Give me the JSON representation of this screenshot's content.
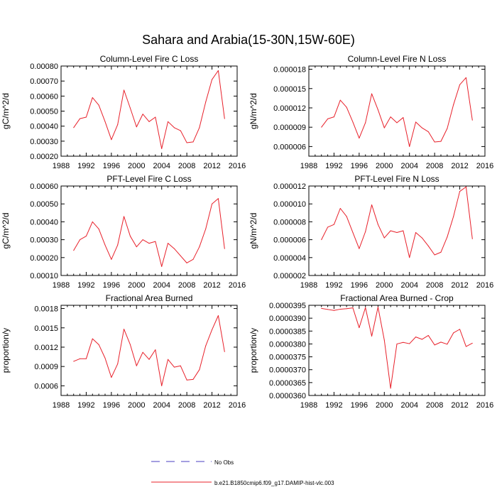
{
  "figure": {
    "title": "Sahara and Arabia(15-30N,15W-60E)"
  },
  "legend": {
    "entries": [
      {
        "label": "No Obs",
        "color": "#4a3fc2",
        "style": "dashed"
      },
      {
        "label": "b.e21.B1850cmip6.f09_g17.DAMIP-hist-vlc.003",
        "color": "#e8202a",
        "style": "solid"
      }
    ]
  },
  "chart_data": [
    {
      "type": "line",
      "title": "Column-Level Fire C Loss",
      "xlabel": "",
      "ylabel": "gC/m^2/d",
      "xlim": [
        1988,
        2016
      ],
      "ylim": [
        0.0002,
        0.0008
      ],
      "xticks": [
        1988,
        1992,
        1996,
        2000,
        2004,
        2008,
        2012,
        2016
      ],
      "xtick_labels": [
        "1988",
        "1992",
        "1996",
        "2000",
        "2004",
        "2008",
        "2012",
        "2016"
      ],
      "yticks": [
        0.0002,
        0.0003,
        0.0004,
        0.0005,
        0.0006,
        0.0007,
        0.0008
      ],
      "ytick_labels": [
        "0.00020",
        "0.00030",
        "0.00040",
        "0.00050",
        "0.00060",
        "0.00070",
        "0.00080"
      ],
      "x": [
        1990,
        1991,
        1992,
        1993,
        1994,
        1995,
        1996,
        1997,
        1998,
        1999,
        2000,
        2001,
        2002,
        2003,
        2004,
        2005,
        2006,
        2007,
        2008,
        2009,
        2010,
        2011,
        2012,
        2013,
        2014
      ],
      "series": [
        {
          "name": "b.e21.B1850cmip6.f09_g17.DAMIP-hist-vlc.003",
          "color": "#e8202a",
          "values": [
            0.00039,
            0.00045,
            0.00046,
            0.00059,
            0.00054,
            0.00043,
            0.00031,
            0.00041,
            0.00064,
            0.00052,
            0.000395,
            0.00048,
            0.00043,
            0.00046,
            0.00025,
            0.00043,
            0.00039,
            0.00037,
            0.00029,
            0.000295,
            0.00039,
            0.00056,
            0.00071,
            0.00077,
            0.00045
          ]
        }
      ]
    },
    {
      "type": "line",
      "title": "Column-Level Fire N Loss",
      "xlabel": "",
      "ylabel": "gN/m^2/d",
      "xlim": [
        1988,
        2016
      ],
      "ylim": [
        4.5e-06,
        1.85e-05
      ],
      "xticks": [
        1988,
        1992,
        1996,
        2000,
        2004,
        2008,
        2012,
        2016
      ],
      "xtick_labels": [
        "1988",
        "1992",
        "1996",
        "2000",
        "2004",
        "2008",
        "2012",
        "2016"
      ],
      "yticks": [
        6e-06,
        9e-06,
        1.2e-05,
        1.5e-05,
        1.8e-05
      ],
      "ytick_labels": [
        "0.000006",
        "0.000009",
        "0.000012",
        "0.000015",
        "0.000018"
      ],
      "x": [
        1990,
        1991,
        1992,
        1993,
        1994,
        1995,
        1996,
        1997,
        1998,
        1999,
        2000,
        2001,
        2002,
        2003,
        2004,
        2005,
        2006,
        2007,
        2008,
        2009,
        2010,
        2011,
        2012,
        2013,
        2014
      ],
      "series": [
        {
          "name": "b.e21.B1850cmip6.f09_g17.DAMIP-hist-vlc.003",
          "color": "#e8202a",
          "values": [
            9e-06,
            1.03e-05,
            1.06e-05,
            1.32e-05,
            1.21e-05,
            9.8e-06,
            7.3e-06,
            9.7e-06,
            1.42e-05,
            1.17e-05,
            8.9e-06,
            1.06e-05,
            9.7e-06,
            1.05e-05,
            6e-06,
            9.8e-06,
            8.9e-06,
            8.3e-06,
            6.7e-06,
            6.8e-06,
            8.8e-06,
            1.25e-05,
            1.56e-05,
            1.67e-05,
            1.01e-05
          ]
        }
      ]
    },
    {
      "type": "line",
      "title": "PFT-Level Fire C Loss",
      "xlabel": "",
      "ylabel": "gC/m^2/d",
      "xlim": [
        1988,
        2016
      ],
      "ylim": [
        0.0001,
        0.0006
      ],
      "xticks": [
        1988,
        1992,
        1996,
        2000,
        2004,
        2008,
        2012,
        2016
      ],
      "xtick_labels": [
        "1988",
        "1992",
        "1996",
        "2000",
        "2004",
        "2008",
        "2012",
        "2016"
      ],
      "yticks": [
        0.0001,
        0.0002,
        0.0003,
        0.0004,
        0.0005,
        0.0006
      ],
      "ytick_labels": [
        "0.00010",
        "0.00020",
        "0.00030",
        "0.00040",
        "0.00050",
        "0.00060"
      ],
      "x": [
        1990,
        1991,
        1992,
        1993,
        1994,
        1995,
        1996,
        1997,
        1998,
        1999,
        2000,
        2001,
        2002,
        2003,
        2004,
        2005,
        2006,
        2007,
        2008,
        2009,
        2010,
        2011,
        2012,
        2013,
        2014
      ],
      "series": [
        {
          "name": "b.e21.B1850cmip6.f09_g17.DAMIP-hist-vlc.003",
          "color": "#e8202a",
          "values": [
            0.00024,
            0.0003,
            0.00032,
            0.0004,
            0.00036,
            0.00027,
            0.00019,
            0.00027,
            0.00043,
            0.00032,
            0.00026,
            0.0003,
            0.00028,
            0.00029,
            0.00015,
            0.00028,
            0.00025,
            0.00021,
            0.00017,
            0.00019,
            0.00026,
            0.00036,
            0.0005,
            0.00053,
            0.00025
          ]
        }
      ]
    },
    {
      "type": "line",
      "title": "PFT-Level Fire N Loss",
      "xlabel": "",
      "ylabel": "gN/m^2/d",
      "xlim": [
        1988,
        2016
      ],
      "ylim": [
        2e-06,
        1.2e-05
      ],
      "xticks": [
        1988,
        1992,
        1996,
        2000,
        2004,
        2008,
        2012,
        2016
      ],
      "xtick_labels": [
        "1988",
        "1992",
        "1996",
        "2000",
        "2004",
        "2008",
        "2012",
        "2016"
      ],
      "yticks": [
        2e-06,
        4e-06,
        6e-06,
        8e-06,
        1e-05,
        1.2e-05
      ],
      "ytick_labels": [
        "0.000002",
        "0.000004",
        "0.000006",
        "0.000008",
        "0.000010",
        "0.000012"
      ],
      "x": [
        1990,
        1991,
        1992,
        1993,
        1994,
        1995,
        1996,
        1997,
        1998,
        1999,
        2000,
        2001,
        2002,
        2003,
        2004,
        2005,
        2006,
        2007,
        2008,
        2009,
        2010,
        2011,
        2012,
        2013,
        2014
      ],
      "series": [
        {
          "name": "b.e21.B1850cmip6.f09_g17.DAMIP-hist-vlc.003",
          "color": "#e8202a",
          "values": [
            6e-06,
            7.4e-06,
            7.7e-06,
            9.5e-06,
            8.6e-06,
            6.8e-06,
            5e-06,
            6.9e-06,
            9.9e-06,
            7.7e-06,
            6.2e-06,
            7e-06,
            6.8e-06,
            7e-06,
            4e-06,
            6.8e-06,
            6.2e-06,
            5.3e-06,
            4.3e-06,
            4.6e-06,
            6.3e-06,
            8.6e-06,
            1.14e-05,
            1.19e-05,
            6.1e-06
          ]
        }
      ]
    },
    {
      "type": "line",
      "title": "Fractional Area Burned",
      "xlabel": "",
      "ylabel": "proportion/y",
      "xlim": [
        1988,
        2016
      ],
      "ylim": [
        0.00045,
        0.00185
      ],
      "xticks": [
        1988,
        1992,
        1996,
        2000,
        2004,
        2008,
        2012,
        2016
      ],
      "xtick_labels": [
        "1988",
        "1992",
        "1996",
        "2000",
        "2004",
        "2008",
        "2012",
        "2016"
      ],
      "yticks": [
        0.0006,
        0.0009,
        0.0012,
        0.0015,
        0.0018
      ],
      "ytick_labels": [
        "0.0006",
        "0.0009",
        "0.0012",
        "0.0015",
        "0.0018"
      ],
      "x": [
        1990,
        1991,
        1992,
        1993,
        1994,
        1995,
        1996,
        1997,
        1998,
        1999,
        2000,
        2001,
        2002,
        2003,
        2004,
        2005,
        2006,
        2007,
        2008,
        2009,
        2010,
        2011,
        2012,
        2013,
        2014
      ],
      "series": [
        {
          "name": "b.e21.B1850cmip6.f09_g17.DAMIP-hist-vlc.003",
          "color": "#e8202a",
          "values": [
            0.00098,
            0.00102,
            0.00102,
            0.00133,
            0.00124,
            0.00103,
            0.00073,
            0.00094,
            0.00148,
            0.00124,
            0.00091,
            0.00112,
            0.00101,
            0.00116,
            0.0006,
            0.00101,
            0.00089,
            0.00091,
            0.00069,
            0.0007,
            0.00085,
            0.00122,
            0.00147,
            0.00169,
            0.00113
          ]
        }
      ]
    },
    {
      "type": "line",
      "title": "Fractional Area Burned - Crop",
      "xlabel": "",
      "ylabel": "proportion/y",
      "xlim": [
        1988,
        2016
      ],
      "ylim": [
        3.6e-05,
        3.95e-05
      ],
      "xticks": [
        1988,
        1992,
        1996,
        2000,
        2004,
        2008,
        2012,
        2016
      ],
      "xtick_labels": [
        "1988",
        "1992",
        "1996",
        "2000",
        "2004",
        "2008",
        "2012",
        "2016"
      ],
      "yticks": [
        3.6e-05,
        3.65e-05,
        3.7e-05,
        3.75e-05,
        3.8e-05,
        3.85e-05,
        3.9e-05,
        3.95e-05
      ],
      "ytick_labels": [
        "0.0000360",
        "0.0000365",
        "0.0000370",
        "0.0000375",
        "0.0000380",
        "0.0000385",
        "0.0000390",
        "0.0000395"
      ],
      "x": [
        1990,
        1991,
        1992,
        1993,
        1994,
        1995,
        1996,
        1997,
        1998,
        1999,
        2000,
        2001,
        2002,
        2003,
        2004,
        2005,
        2006,
        2007,
        2008,
        2009,
        2010,
        2011,
        2012,
        2013,
        2014
      ],
      "series": [
        {
          "name": "b.e21.B1850cmip6.f09_g17.DAMIP-hist-vlc.003",
          "color": "#e8202a",
          "values": [
            3.938e-05,
            3.934e-05,
            3.93e-05,
            3.935e-05,
            3.937e-05,
            3.94e-05,
            3.863e-05,
            3.941e-05,
            3.83e-05,
            3.943e-05,
            3.815e-05,
            3.628e-05,
            3.8e-05,
            3.806e-05,
            3.801e-05,
            3.827e-05,
            3.818e-05,
            3.833e-05,
            3.796e-05,
            3.807e-05,
            3.799e-05,
            3.843e-05,
            3.857e-05,
            3.79e-05,
            3.803e-05
          ]
        }
      ]
    }
  ]
}
